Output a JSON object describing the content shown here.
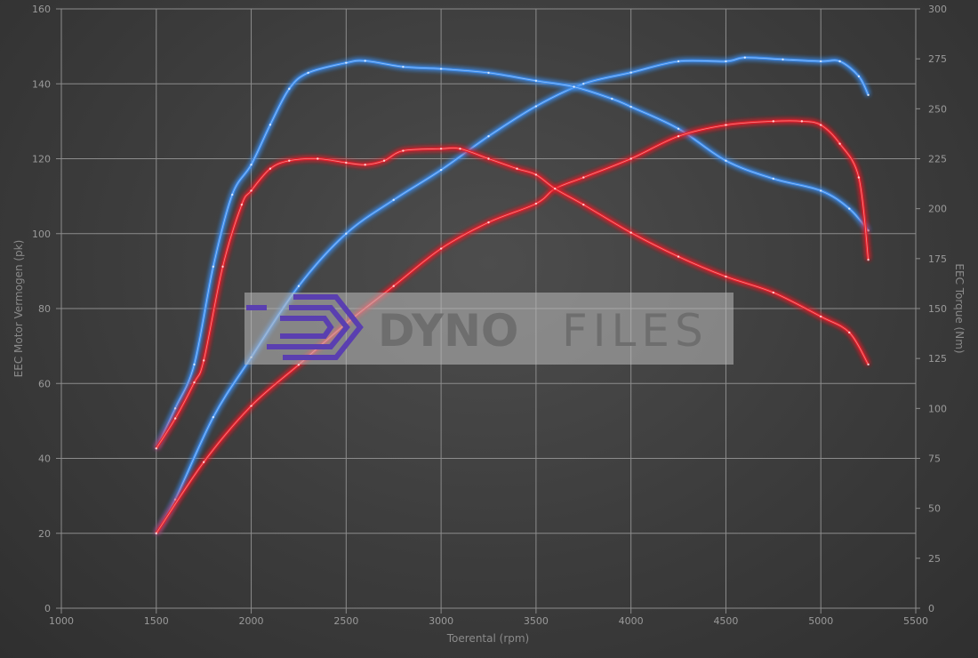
{
  "chart_data": {
    "type": "line",
    "xlabel": "Toerental (rpm)",
    "ylabel_left": "EEC Motor Vermogen (pk)",
    "ylabel_right": "EEC Torque (Nm)",
    "xlim": [
      1000,
      5500
    ],
    "ylim_left": [
      0,
      160
    ],
    "ylim_right": [
      0,
      300
    ],
    "x_ticks": [
      "1000",
      "1500",
      "2000",
      "2500",
      "3000",
      "3500",
      "4000",
      "4500",
      "5000",
      "5500"
    ],
    "y_left_ticks": [
      "0",
      "20",
      "40",
      "60",
      "80",
      "100",
      "120",
      "140",
      "160"
    ],
    "y_right_ticks": [
      "0",
      "25",
      "50",
      "75",
      "100",
      "125",
      "150",
      "175",
      "200",
      "225",
      "250",
      "275",
      "300"
    ],
    "grid": true,
    "watermark": "DYNOFILES",
    "series": [
      {
        "axis": "left",
        "color": "#3d8ef0",
        "x": [
          1500,
          1600,
          1800,
          2000,
          2250,
          2500,
          2750,
          3000,
          3250,
          3500,
          3750,
          4000,
          4250,
          4500,
          4600,
          4800,
          5000,
          5100,
          5200,
          5250
        ],
        "y": [
          20,
          29,
          51,
          67,
          86,
          100,
          109,
          117,
          126,
          134,
          140,
          143,
          146,
          146,
          147,
          146.5,
          146,
          146,
          142,
          137
        ]
      },
      {
        "axis": "right",
        "color": "#3d8ef0",
        "x": [
          1500,
          1600,
          1700,
          1800,
          1900,
          2000,
          2100,
          2200,
          2300,
          2500,
          2600,
          2800,
          3000,
          3250,
          3500,
          3700,
          3900,
          4000,
          4250,
          4500,
          4750,
          5000,
          5150,
          5250
        ],
        "y": [
          80,
          100,
          122,
          171,
          207,
          222,
          242,
          260,
          268,
          273,
          274,
          271,
          270,
          268,
          264,
          261,
          255,
          251,
          240,
          224,
          215,
          209,
          200,
          189
        ]
      },
      {
        "axis": "left",
        "color": "#e8202a",
        "x": [
          1500,
          1750,
          2000,
          2250,
          2500,
          2750,
          3000,
          3250,
          3500,
          3600,
          3750,
          4000,
          4250,
          4500,
          4750,
          4900,
          5000,
          5100,
          5200,
          5250
        ],
        "y": [
          20,
          39,
          54,
          65,
          76,
          86,
          96,
          103,
          108,
          112,
          115,
          120,
          126,
          129,
          130,
          130,
          129,
          124,
          115,
          93
        ]
      },
      {
        "axis": "right",
        "color": "#e8202a",
        "x": [
          1500,
          1600,
          1700,
          1750,
          1850,
          1950,
          2000,
          2100,
          2200,
          2350,
          2500,
          2600,
          2700,
          2800,
          3000,
          3100,
          3250,
          3400,
          3500,
          3600,
          3750,
          4000,
          4250,
          4500,
          4750,
          5000,
          5150,
          5250
        ],
        "y": [
          80,
          95,
          113,
          124,
          171,
          202,
          209,
          220,
          224,
          225,
          223,
          222,
          224,
          229,
          230,
          230,
          225,
          220,
          217,
          210,
          202,
          188,
          176,
          166,
          158,
          146,
          138,
          122
        ]
      }
    ]
  }
}
